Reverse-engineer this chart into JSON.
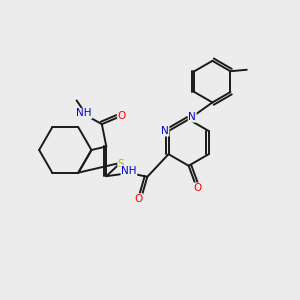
{
  "bg_color": "#ececec",
  "bond_color": "#1a1a1a",
  "atom_colors": {
    "N": "#0000cd",
    "O": "#ff0000",
    "S": "#b8b800",
    "C": "#1a1a1a",
    "H": "#1a1a1a"
  },
  "lw": 1.4
}
